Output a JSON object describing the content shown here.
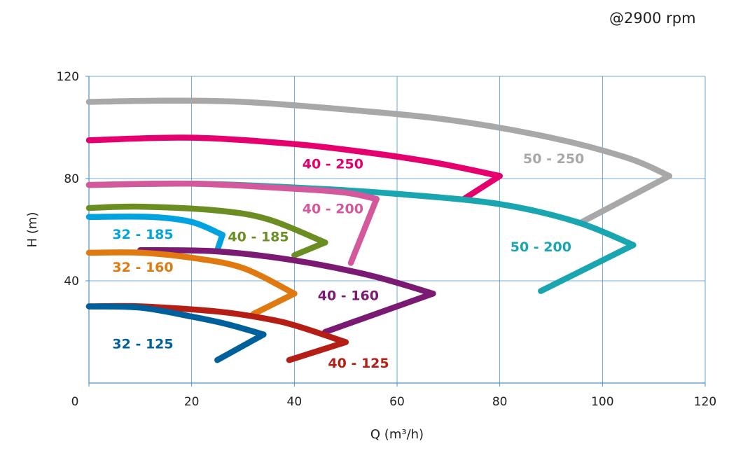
{
  "header": {
    "speed_note": "@2900 rpm"
  },
  "chart_data": {
    "type": "line",
    "title": "",
    "xlabel": "Q (m³/h)",
    "ylabel": "H (m)",
    "xlim": [
      0,
      120
    ],
    "ylim": [
      0,
      120
    ],
    "xticks": [
      "0",
      "20",
      "40",
      "60",
      "80",
      "100",
      "120"
    ],
    "yticks": [
      "40",
      "80",
      "120"
    ],
    "grid": true,
    "series": [
      {
        "name": "50 - 250",
        "color": "#a8a8a8",
        "points": [
          [
            0,
            110
          ],
          [
            15,
            110.5
          ],
          [
            30,
            110
          ],
          [
            50,
            107
          ],
          [
            70,
            103
          ],
          [
            90,
            96
          ],
          [
            105,
            88
          ],
          [
            113,
            81
          ],
          [
            96,
            63
          ]
        ]
      },
      {
        "name": "40 - 250",
        "color": "#e5006d",
        "points": [
          [
            0,
            95
          ],
          [
            20,
            96
          ],
          [
            40,
            93.5
          ],
          [
            55,
            90
          ],
          [
            68,
            86
          ],
          [
            80,
            81
          ],
          [
            73,
            72
          ]
        ]
      },
      {
        "name": "50 - 200",
        "color": "#1aa6b0",
        "points": [
          [
            0,
            77.5
          ],
          [
            20,
            78
          ],
          [
            40,
            76.5
          ],
          [
            60,
            74
          ],
          [
            80,
            70
          ],
          [
            95,
            63
          ],
          [
            106,
            54
          ],
          [
            88,
            36
          ]
        ]
      },
      {
        "name": "40 - 200",
        "color": "#d4589c",
        "points": [
          [
            0,
            77.5
          ],
          [
            20,
            78
          ],
          [
            40,
            76
          ],
          [
            50,
            74.5
          ],
          [
            56,
            72
          ],
          [
            51,
            47
          ]
        ]
      },
      {
        "name": "40 - 185",
        "color": "#6b8e23",
        "points": [
          [
            0,
            68.5
          ],
          [
            10,
            69
          ],
          [
            25,
            67.5
          ],
          [
            35,
            64
          ],
          [
            46,
            55
          ],
          [
            40,
            50
          ]
        ]
      },
      {
        "name": "32 - 185",
        "color": "#00a3e0",
        "points": [
          [
            0,
            65
          ],
          [
            12,
            65
          ],
          [
            20,
            63
          ],
          [
            26,
            58
          ],
          [
            25,
            52
          ]
        ]
      },
      {
        "name": "40 - 160",
        "color": "#7b1a73",
        "points": [
          [
            10,
            52
          ],
          [
            25,
            51.5
          ],
          [
            40,
            48
          ],
          [
            55,
            42
          ],
          [
            67,
            35
          ],
          [
            46,
            20
          ]
        ]
      },
      {
        "name": "32 - 160",
        "color": "#e07a10",
        "points": [
          [
            0,
            51
          ],
          [
            10,
            51
          ],
          [
            20,
            49
          ],
          [
            30,
            45
          ],
          [
            40,
            35
          ],
          [
            32,
            27
          ]
        ]
      },
      {
        "name": "40 - 125",
        "color": "#b41e14",
        "points": [
          [
            0,
            30
          ],
          [
            10,
            30
          ],
          [
            25,
            28
          ],
          [
            35,
            25
          ],
          [
            41,
            22
          ],
          [
            50,
            16
          ],
          [
            39,
            9
          ]
        ]
      },
      {
        "name": "32 - 125",
        "color": "#00609c",
        "points": [
          [
            0,
            30
          ],
          [
            10,
            29.5
          ],
          [
            20,
            26
          ],
          [
            27,
            23
          ],
          [
            34,
            19
          ],
          [
            25,
            9
          ]
        ]
      }
    ],
    "labels": [
      {
        "text": "50 - 250",
        "x": 90.5,
        "y": 86,
        "color": "#a8a8a8"
      },
      {
        "text": "40 - 250",
        "x": 47.5,
        "y": 84,
        "color": "#e5006d"
      },
      {
        "text": "50 - 200",
        "x": 88,
        "y": 51.5,
        "color": "#1aa6b0"
      },
      {
        "text": "40 - 200",
        "x": 47.5,
        "y": 66.5,
        "color": "#d4589c"
      },
      {
        "text": "40 - 185",
        "x": 33,
        "y": 55.5,
        "color": "#6b8e23"
      },
      {
        "text": "32 - 185",
        "x": 10.5,
        "y": 56.5,
        "color": "#00a3e0"
      },
      {
        "text": "40 - 160",
        "x": 50.5,
        "y": 32.5,
        "color": "#7b1a73"
      },
      {
        "text": "32 - 160",
        "x": 10.5,
        "y": 43.5,
        "color": "#e07a10"
      },
      {
        "text": "40 - 125",
        "x": 52.5,
        "y": 6,
        "color": "#b41e14"
      },
      {
        "text": "32 - 125",
        "x": 10.5,
        "y": 13.5,
        "color": "#00609c"
      }
    ]
  }
}
